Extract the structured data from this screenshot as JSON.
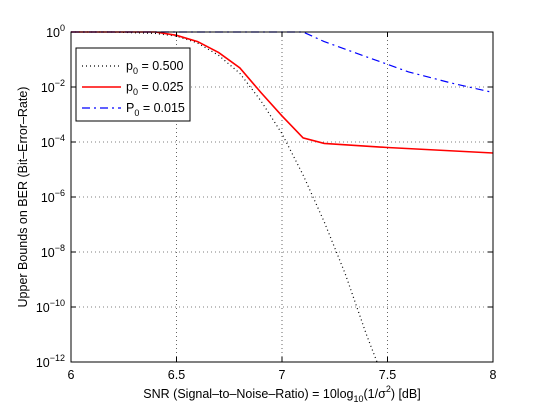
{
  "chart_data": {
    "type": "line",
    "xlabel": "SNR (Signal–to–Noise–Ratio) = 10log10(1/σ2) [dB]",
    "xlabel_parts": {
      "before": "SNR (Signal–to–Noise–Ratio) = 10log",
      "sub": "10",
      "middle": "(1/σ",
      "sup": "2",
      "after": ") [dB]"
    },
    "ylabel": "Upper Bounds on BER (Bit–Error–Rate)",
    "xlim": [
      6,
      8
    ],
    "ylim": [
      1e-12,
      1
    ],
    "yscale": "log",
    "grid": true,
    "legend_position": "top-left",
    "x_ticks": [
      {
        "value": 6,
        "label": "6"
      },
      {
        "value": 6.5,
        "label": "6.5"
      },
      {
        "value": 7,
        "label": "7"
      },
      {
        "value": 7.5,
        "label": "7.5"
      },
      {
        "value": 8,
        "label": "8"
      }
    ],
    "y_ticks": [
      {
        "exp": 0,
        "base": "10",
        "sup": "0"
      },
      {
        "exp": -2,
        "base": "10",
        "sup": "−2"
      },
      {
        "exp": -4,
        "base": "10",
        "sup": "−4"
      },
      {
        "exp": -6,
        "base": "10",
        "sup": "−6"
      },
      {
        "exp": -8,
        "base": "10",
        "sup": "−8"
      },
      {
        "exp": -10,
        "base": "10",
        "sup": "−10"
      },
      {
        "exp": -12,
        "base": "10",
        "sup": "−12"
      }
    ],
    "series": [
      {
        "name": "p0 = 0.500",
        "legend": {
          "symbol": "p",
          "sub": "0",
          "rest": " = 0.500"
        },
        "color": "#000000",
        "style": "dotted",
        "x": [
          6.0,
          6.2,
          6.4,
          6.5,
          6.6,
          6.7,
          6.8,
          6.9,
          7.0,
          7.1,
          7.2,
          7.3,
          7.4,
          7.45
        ],
        "log10_y": [
          0,
          0,
          -0.05,
          -0.15,
          -0.4,
          -0.85,
          -1.5,
          -2.5,
          -3.7,
          -5.2,
          -6.9,
          -8.8,
          -11.0,
          -12.0
        ]
      },
      {
        "name": "p0 = 0.025",
        "legend": {
          "symbol": "p",
          "sub": "0",
          "rest": " = 0.025"
        },
        "color": "#ff0000",
        "style": "solid",
        "x": [
          6.0,
          6.4,
          6.5,
          6.6,
          6.7,
          6.8,
          6.9,
          7.0,
          7.1,
          7.2,
          7.5,
          8.0
        ],
        "log10_y": [
          0,
          0,
          -0.12,
          -0.35,
          -0.75,
          -1.3,
          -2.2,
          -3.05,
          -3.85,
          -4.05,
          -4.2,
          -4.4
        ]
      },
      {
        "name": "P0 = 0.015",
        "legend": {
          "symbol": "P",
          "sub": "0",
          "rest": " = 0.015"
        },
        "color": "#0000ff",
        "style": "dashdot",
        "x": [
          6.0,
          7.1,
          7.2,
          7.4,
          7.6,
          7.8,
          8.0
        ],
        "log10_y": [
          0,
          0,
          -0.35,
          -0.9,
          -1.45,
          -1.85,
          -2.2
        ]
      }
    ]
  }
}
